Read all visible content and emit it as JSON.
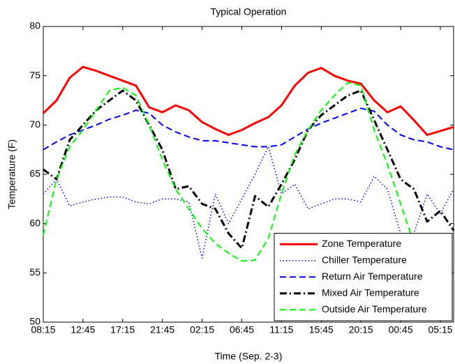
{
  "chart_data": {
    "type": "line",
    "title": "Typical Operation",
    "x_label": "Time (Sep. 2-3)",
    "y_label": "Temperature (F)",
    "x": [
      0,
      1.5,
      3,
      4.5,
      6,
      7.5,
      9,
      10.5,
      12,
      13.5,
      15,
      16.5,
      18,
      19.5,
      21,
      22.5,
      24,
      25.5,
      27,
      28.5,
      30,
      31.5,
      33,
      34.5,
      36,
      37.5,
      39,
      40.5,
      42,
      43.5,
      45,
      46.5
    ],
    "xlim": [
      0,
      46.5
    ],
    "xticks": [
      {
        "value": 0,
        "label": "08:15"
      },
      {
        "value": 4.5,
        "label": "12:45"
      },
      {
        "value": 9,
        "label": "17:15"
      },
      {
        "value": 13.5,
        "label": "21:45"
      },
      {
        "value": 18,
        "label": "02:15"
      },
      {
        "value": 22.5,
        "label": "06:45"
      },
      {
        "value": 27,
        "label": "11:15"
      },
      {
        "value": 31.5,
        "label": "15:45"
      },
      {
        "value": 36,
        "label": "20:15"
      },
      {
        "value": 40.5,
        "label": "00:45"
      },
      {
        "value": 45,
        "label": "05:15"
      }
    ],
    "ylim": [
      50,
      80
    ],
    "yticks": [
      50,
      55,
      60,
      65,
      70,
      75,
      80
    ],
    "legend": "lower right",
    "series": [
      {
        "name": "Zone Temperature",
        "color": "#ff0000",
        "line_style": "solid",
        "linewidth": 3,
        "values": [
          71.2,
          72.5,
          74.8,
          75.9,
          75.5,
          75.0,
          74.5,
          74.0,
          71.8,
          71.3,
          72.0,
          71.5,
          70.3,
          69.6,
          69.0,
          69.5,
          70.2,
          70.8,
          72.0,
          74.0,
          75.3,
          75.8,
          75.0,
          74.5,
          74.2,
          72.5,
          71.3,
          71.9,
          70.5,
          69.0,
          69.4,
          69.8
        ]
      },
      {
        "name": "Chiller Temperature",
        "color": "#0000ff",
        "line_style": "dotted",
        "linewidth": 1.5,
        "values": [
          63.0,
          64.5,
          61.8,
          62.2,
          62.5,
          62.7,
          62.7,
          62.2,
          62.0,
          62.5,
          62.5,
          62.2,
          56.5,
          63.0,
          60.0,
          62.5,
          65.0,
          67.8,
          63.0,
          64.0,
          61.5,
          62.0,
          62.5,
          62.5,
          62.2,
          64.8,
          63.5,
          59.0,
          59.0,
          63.0,
          61.0,
          63.5
        ]
      },
      {
        "name": "Return Air Temperature",
        "color": "#0000ff",
        "line_style": "dashed",
        "linewidth": 2,
        "values": [
          67.5,
          68.3,
          69.0,
          69.5,
          70.0,
          70.6,
          71.0,
          71.5,
          71.2,
          70.0,
          69.3,
          68.8,
          68.4,
          68.4,
          68.2,
          68.0,
          67.8,
          67.8,
          68.0,
          68.8,
          69.6,
          70.2,
          70.7,
          71.2,
          71.7,
          71.4,
          70.0,
          69.0,
          68.5,
          68.3,
          67.8,
          67.5
        ]
      },
      {
        "name": "Mixed Air Temperature",
        "color": "#000000",
        "line_style": "dashdot",
        "linewidth": 3,
        "values": [
          65.5,
          64.5,
          68.5,
          70.0,
          71.5,
          72.5,
          73.5,
          72.5,
          70.0,
          67.5,
          63.5,
          63.8,
          62.0,
          61.5,
          59.0,
          57.5,
          62.8,
          61.7,
          64.0,
          66.5,
          69.5,
          71.0,
          72.0,
          73.0,
          73.5,
          70.5,
          67.5,
          64.5,
          63.5,
          60.2,
          61.3,
          59.3
        ]
      },
      {
        "name": "Outside Air Temperature",
        "color": "#00ff00",
        "line_style": "dashed",
        "linewidth": 2,
        "values": [
          58.8,
          64.5,
          67.8,
          69.5,
          71.5,
          73.5,
          73.8,
          73.0,
          70.0,
          66.5,
          63.5,
          61.5,
          59.5,
          58.0,
          57.0,
          56.2,
          56.3,
          58.5,
          63.0,
          67.0,
          69.5,
          71.5,
          73.0,
          74.3,
          74.0,
          69.5,
          66.0,
          62.0,
          58.0,
          56.5,
          55.5,
          55.0
        ]
      }
    ]
  }
}
